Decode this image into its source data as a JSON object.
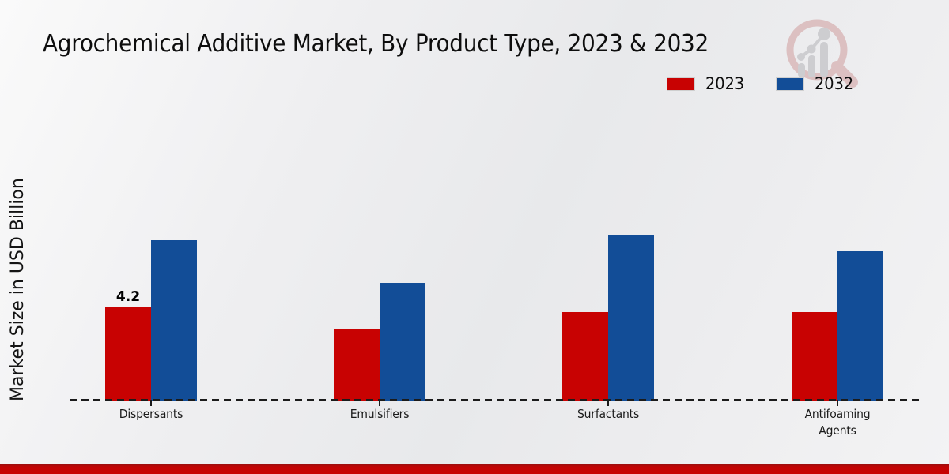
{
  "title": "Agrochemical Additive Market, By Product Type, 2023 & 2032",
  "ylabel": "Market Size in USD Billion",
  "legend": {
    "items": [
      {
        "label": "2023",
        "color": "#c80202"
      },
      {
        "label": "2032",
        "color": "#124d97"
      }
    ]
  },
  "colors": {
    "series_2023": "#c80202",
    "series_2032": "#124d97",
    "background": "#ebecee",
    "baseline": "#1b1b1b",
    "bottom_accent": "#c80202",
    "text": "#0d0d0d",
    "watermark_pink": "#cf9d9d",
    "watermark_gray": "#b4b4b9"
  },
  "chart_data": {
    "type": "bar",
    "title": "Agrochemical Additive Market, By Product Type, 2023 & 2032",
    "xlabel": "",
    "ylabel": "Market Size in USD Billion",
    "categories": [
      "Dispersants",
      "Emulsifiers",
      "Surfactants",
      "Antifoaming Agents"
    ],
    "series": [
      {
        "name": "2023",
        "color": "#c80202",
        "values": [
          4.2,
          3.2,
          4.0,
          4.0
        ]
      },
      {
        "name": "2032",
        "color": "#124d97",
        "values": [
          7.2,
          5.3,
          7.4,
          6.7
        ]
      }
    ],
    "bar_labels": [
      {
        "category": "Dispersants",
        "series": "2023",
        "text": "4.2"
      }
    ],
    "ylim": [
      0,
      8.5
    ],
    "grid": false,
    "legend_position": "top-right",
    "baseline_style": "dashed"
  }
}
